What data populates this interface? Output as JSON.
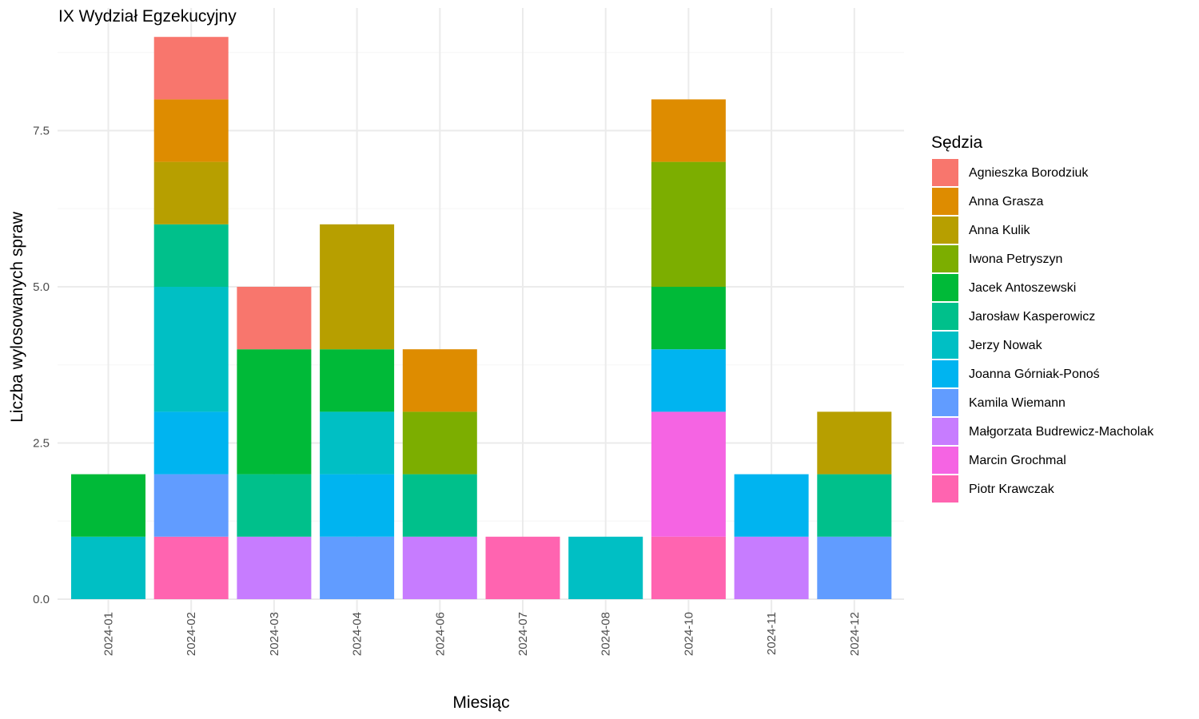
{
  "chart_data": {
    "type": "bar",
    "stacked": true,
    "title": "IX Wydział Egzekucyjny",
    "xlabel": "Miesiąc",
    "ylabel": "Liczba wylosowanych spraw",
    "ylim": [
      0,
      9
    ],
    "yticks": [
      "0.0",
      "2.5",
      "5.0",
      "7.5"
    ],
    "grid": true,
    "legend_title": "Sędzia",
    "legend_position": "right",
    "categories": [
      "2024-01",
      "2024-02",
      "2024-03",
      "2024-04",
      "2024-06",
      "2024-07",
      "2024-08",
      "2024-10",
      "2024-11",
      "2024-12"
    ],
    "series": [
      {
        "name": "Agnieszka Borodziuk",
        "color": "#F8766D",
        "values": [
          0,
          1,
          1,
          0,
          0,
          0,
          0,
          0,
          0,
          0
        ]
      },
      {
        "name": "Anna Grasza",
        "color": "#DE8C00",
        "values": [
          0,
          1,
          0,
          0,
          1,
          0,
          0,
          1,
          0,
          0
        ]
      },
      {
        "name": "Anna Kulik",
        "color": "#B79F00",
        "values": [
          0,
          1,
          0,
          2,
          0,
          0,
          0,
          0,
          0,
          1
        ]
      },
      {
        "name": "Iwona Petryszyn",
        "color": "#7CAE00",
        "values": [
          0,
          0,
          0,
          0,
          1,
          0,
          0,
          2,
          0,
          0
        ]
      },
      {
        "name": "Jacek Antoszewski",
        "color": "#00BA38",
        "values": [
          1,
          0,
          2,
          1,
          0,
          0,
          0,
          1,
          0,
          0
        ]
      },
      {
        "name": "Jarosław Kasperowicz",
        "color": "#00C08B",
        "values": [
          0,
          1,
          1,
          0,
          1,
          0,
          0,
          0,
          0,
          1
        ]
      },
      {
        "name": "Jerzy Nowak",
        "color": "#00BFC4",
        "values": [
          1,
          2,
          0,
          1,
          0,
          0,
          1,
          0,
          0,
          0
        ]
      },
      {
        "name": "Joanna Górniak-Ponoś",
        "color": "#00B4F0",
        "values": [
          0,
          1,
          0,
          1,
          0,
          0,
          0,
          1,
          1,
          0
        ]
      },
      {
        "name": "Kamila Wiemann",
        "color": "#619CFF",
        "values": [
          0,
          1,
          0,
          1,
          0,
          0,
          0,
          0,
          0,
          1
        ]
      },
      {
        "name": "Małgorzata Budrewicz-Macholak",
        "color": "#C77CFF",
        "values": [
          0,
          0,
          1,
          0,
          1,
          0,
          0,
          0,
          1,
          0
        ]
      },
      {
        "name": "Marcin Grochmal",
        "color": "#F564E3",
        "values": [
          0,
          0,
          0,
          0,
          0,
          0,
          0,
          2,
          0,
          0
        ]
      },
      {
        "name": "Piotr Krawczak",
        "color": "#FF64B0",
        "values": [
          0,
          1,
          0,
          0,
          0,
          1,
          0,
          1,
          0,
          0
        ]
      }
    ]
  }
}
